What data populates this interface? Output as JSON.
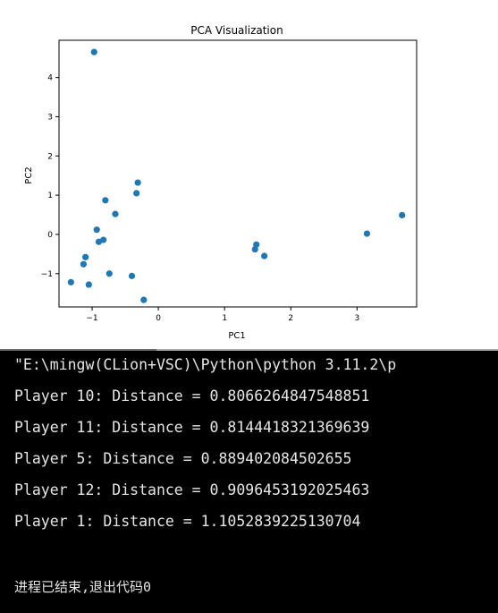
{
  "chart_data": {
    "type": "scatter",
    "title": "PCA Visualization",
    "xlabel": "PC1",
    "ylabel": "PC2",
    "xlim": [
      -1.5,
      3.9
    ],
    "ylim": [
      -1.85,
      4.95
    ],
    "xticks": [
      -1,
      0,
      1,
      2,
      3
    ],
    "yticks": [
      -1,
      0,
      1,
      2,
      3,
      4
    ],
    "grid": false,
    "color": "#1f77b4",
    "points": [
      {
        "x": -0.97,
        "y": 4.65
      },
      {
        "x": -0.31,
        "y": 1.32
      },
      {
        "x": -0.33,
        "y": 1.05
      },
      {
        "x": -0.8,
        "y": 0.87
      },
      {
        "x": -0.65,
        "y": 0.52
      },
      {
        "x": -0.93,
        "y": 0.12
      },
      {
        "x": -0.83,
        "y": -0.14
      },
      {
        "x": -0.9,
        "y": -0.19
      },
      {
        "x": -1.1,
        "y": -0.58
      },
      {
        "x": -1.13,
        "y": -0.76
      },
      {
        "x": -0.74,
        "y": -1.0
      },
      {
        "x": -0.4,
        "y": -1.06
      },
      {
        "x": -1.32,
        "y": -1.22
      },
      {
        "x": -1.05,
        "y": -1.28
      },
      {
        "x": -0.22,
        "y": -1.67
      },
      {
        "x": 1.48,
        "y": -0.26
      },
      {
        "x": 1.46,
        "y": -0.38
      },
      {
        "x": 1.6,
        "y": -0.55
      },
      {
        "x": 3.15,
        "y": 0.02
      },
      {
        "x": 3.68,
        "y": 0.49
      }
    ]
  },
  "console": {
    "command": "\"E:\\mingw(CLion+VSC)\\Python\\python 3.11.2\\p",
    "lines": [
      "Player 10: Distance = 0.8066264847548851",
      "Player 11: Distance = 0.8144418321369639",
      "Player 5: Distance = 0.889402084502655",
      "Player 12: Distance = 0.9096453192025463",
      "Player 1: Distance = 1.1052839225130704"
    ],
    "exit_message": "进程已结束,退出代码0"
  }
}
